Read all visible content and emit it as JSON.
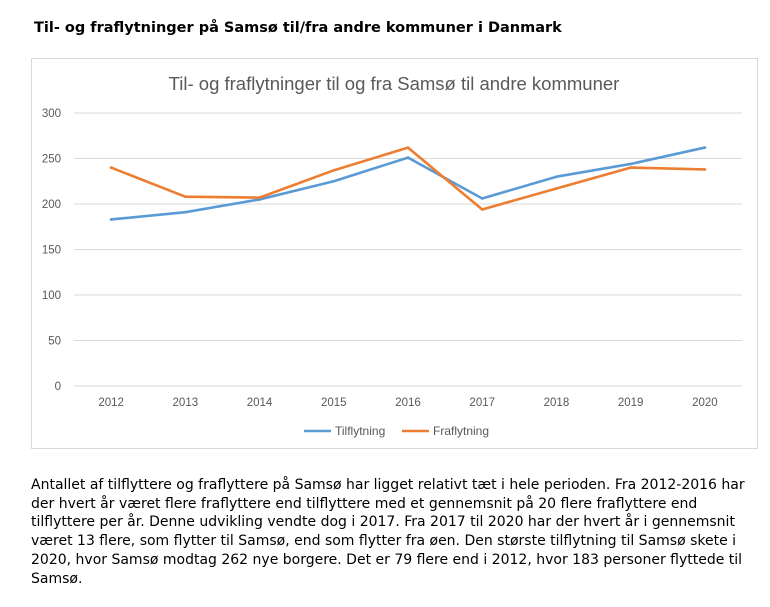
{
  "heading": "Til- og fraflytninger på Samsø til/fra andre kommuner i Danmark",
  "chart_data": {
    "type": "line",
    "title": "Til- og fraflytninger til og fra Samsø til andre kommuner",
    "xlabel": "",
    "ylabel": "",
    "ylim": [
      0,
      300
    ],
    "yticks": [
      "0",
      "50",
      "100",
      "150",
      "200",
      "250",
      "300"
    ],
    "categories": [
      "2012",
      "2013",
      "2014",
      "2015",
      "2016",
      "2017",
      "2018",
      "2019",
      "2020"
    ],
    "grid": true,
    "legend_position": "bottom",
    "series": [
      {
        "name": "Tilflytning",
        "color": "#5b9bd5",
        "values": [
          183,
          191,
          205,
          225,
          251,
          206,
          230,
          244,
          262
        ]
      },
      {
        "name": "Fraflytning",
        "color": "#ed7d31",
        "values": [
          240,
          208,
          207,
          237,
          262,
          194,
          217,
          240,
          238
        ]
      }
    ]
  },
  "paragraph": "Antallet af tilflyttere og fraflyttere på Samsø har ligget relativt tæt i hele perioden. Fra 2012-2016 har der hvert år været flere fraflyttere end tilflyttere med et gennemsnit på 20 flere fraflyttere end tilflyttere per år. Denne udvikling vendte dog i 2017. Fra 2017 til 2020 har der hvert år i gennemsnit været 13 flere, som flytter til Samsø, end som flytter fra øen. Den største tilflytning til Samsø skete i 2020, hvor Samsø modtag 262 nye borgere. Det er 79 flere end i 2012, hvor 183 personer flyttede til Samsø."
}
